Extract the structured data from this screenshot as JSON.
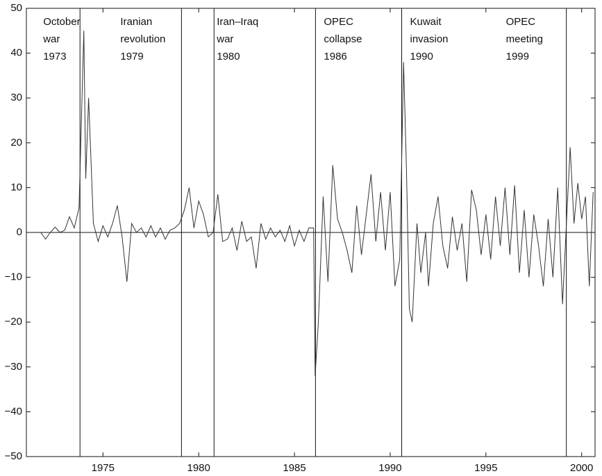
{
  "chart_data": {
    "type": "line",
    "x": [
      1971.75,
      1972.0,
      1972.25,
      1972.5,
      1972.75,
      1973.0,
      1973.25,
      1973.5,
      1973.75,
      1974.0,
      1974.1,
      1974.25,
      1974.5,
      1974.75,
      1975.0,
      1975.25,
      1975.5,
      1975.75,
      1976.0,
      1976.25,
      1976.5,
      1976.75,
      1977.0,
      1977.25,
      1977.5,
      1977.75,
      1978.0,
      1978.25,
      1978.5,
      1978.75,
      1979.0,
      1979.25,
      1979.5,
      1979.75,
      1980.0,
      1980.25,
      1980.5,
      1980.75,
      1981.0,
      1981.25,
      1981.5,
      1981.75,
      1982.0,
      1982.25,
      1982.5,
      1982.75,
      1983.0,
      1983.25,
      1983.5,
      1983.75,
      1984.0,
      1984.25,
      1984.5,
      1984.75,
      1985.0,
      1985.25,
      1985.5,
      1985.75,
      1986.0,
      1986.08,
      1986.25,
      1986.5,
      1986.75,
      1987.0,
      1987.25,
      1987.5,
      1987.75,
      1988.0,
      1988.25,
      1988.5,
      1988.75,
      1989.0,
      1989.25,
      1989.5,
      1989.75,
      1990.0,
      1990.25,
      1990.5,
      1990.7,
      1990.85,
      1991.0,
      1991.15,
      1991.4,
      1991.6,
      1991.85,
      1992.0,
      1992.25,
      1992.5,
      1992.75,
      1993.0,
      1993.25,
      1993.5,
      1993.75,
      1994.0,
      1994.25,
      1994.5,
      1994.75,
      1995.0,
      1995.25,
      1995.5,
      1995.75,
      1996.0,
      1996.25,
      1996.5,
      1996.75,
      1997.0,
      1997.25,
      1997.5,
      1997.75,
      1998.0,
      1998.25,
      1998.5,
      1998.75,
      1999.0,
      1999.25,
      1999.4,
      1999.6,
      1999.8,
      2000.0,
      2000.2,
      2000.4,
      2000.6
    ],
    "series": [
      {
        "color": "#333333",
        "values": [
          0,
          -1.5,
          0,
          1.2,
          0,
          0.5,
          3.5,
          1,
          5.5,
          45,
          12,
          30,
          2,
          -2,
          1.5,
          -1,
          2,
          6,
          -1,
          -11,
          2,
          0,
          1,
          -1,
          1.5,
          -1,
          1,
          -1.5,
          0.5,
          1,
          2,
          5,
          10,
          1,
          7,
          4,
          -1,
          0,
          8.5,
          -2,
          -1.5,
          1,
          -4,
          2.5,
          -2,
          -1,
          -8,
          2,
          -1.5,
          1,
          -1,
          0.5,
          -2,
          1.5,
          -3,
          0.5,
          -2,
          1,
          1,
          -32,
          -20,
          8,
          -11,
          15,
          3,
          0,
          -4,
          -9,
          6,
          -5,
          4,
          13,
          -2,
          9,
          -4,
          9,
          -12,
          -6,
          38,
          14,
          -17,
          -20,
          2,
          -9,
          0,
          -12,
          2,
          8,
          -3,
          -8,
          3.5,
          -4,
          2,
          -11,
          9.5,
          5,
          -5,
          4,
          -6,
          8,
          -3,
          10,
          -5,
          10.5,
          -9,
          5,
          -10,
          4,
          -3,
          -12,
          3,
          -10,
          10,
          -16,
          6,
          19,
          2,
          11,
          3,
          8,
          -12,
          9
        ]
      }
    ],
    "events": [
      {
        "x": 1973.8,
        "label": [
          "October",
          "war",
          "1973"
        ]
      },
      {
        "x": 1979.1,
        "label": [
          "Iranian",
          "revolution",
          "1979"
        ]
      },
      {
        "x": 1980.8,
        "label": [
          "Iran–Iraq",
          "war",
          "1980"
        ]
      },
      {
        "x": 1986.1,
        "label": [
          "OPEC",
          "collapse",
          "1986"
        ]
      },
      {
        "x": 1990.6,
        "label": [
          "Kuwait",
          "invasion",
          "1990"
        ]
      },
      {
        "x": 1999.2,
        "label": [
          "OPEC",
          "meeting",
          "1999"
        ]
      }
    ],
    "xlim": [
      1971,
      2000.7
    ],
    "xticks": [
      1975,
      1980,
      1985,
      1990,
      1995,
      2000
    ],
    "ylim": [
      -50,
      50
    ],
    "yticks": [
      {
        "value": -50,
        "label": "−50"
      },
      {
        "value": -40,
        "label": "−40"
      },
      {
        "value": -30,
        "label": "−30"
      },
      {
        "value": -20,
        "label": "−20"
      },
      {
        "value": -10,
        "label": "−10"
      },
      0,
      10,
      20,
      30,
      40,
      50
    ]
  }
}
